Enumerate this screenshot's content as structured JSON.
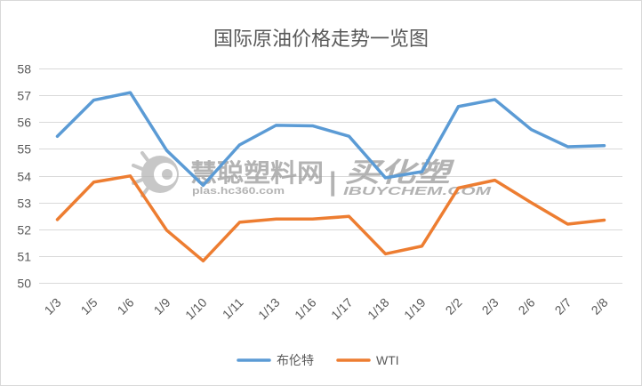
{
  "chart_data": {
    "type": "line",
    "title": "国际原油价格走势一览图",
    "categories": [
      "1/3",
      "1/5",
      "1/6",
      "1/9",
      "1/10",
      "1/11",
      "1/13",
      "1/16",
      "1/17",
      "1/18",
      "1/19",
      "2/2",
      "2/3",
      "2/6",
      "2/7",
      "2/8"
    ],
    "series": [
      {
        "name": "布伦特",
        "color": "#5B9BD5",
        "values": [
          55.47,
          56.82,
          57.1,
          54.94,
          53.64,
          55.15,
          55.88,
          55.86,
          55.47,
          53.92,
          54.15,
          56.58,
          56.84,
          55.72,
          55.08,
          55.12
        ]
      },
      {
        "name": "WTI",
        "color": "#ED7D31",
        "values": [
          52.36,
          53.76,
          53.99,
          51.96,
          50.82,
          52.26,
          52.38,
          52.38,
          52.48,
          51.08,
          51.37,
          53.54,
          53.83,
          52.99,
          52.19,
          52.34
        ]
      }
    ],
    "ylim": [
      50,
      58
    ],
    "yticks": [
      50,
      51,
      52,
      53,
      54,
      55,
      56,
      57,
      58
    ],
    "grid": true,
    "legend": "bottom"
  },
  "watermark": {
    "brand_cn": "慧聪塑料网",
    "brand_url": "plas.hc360.com",
    "separator": "|",
    "brand2_cn": "买化塑",
    "brand2_en": "IBUYCHEM.COM"
  }
}
